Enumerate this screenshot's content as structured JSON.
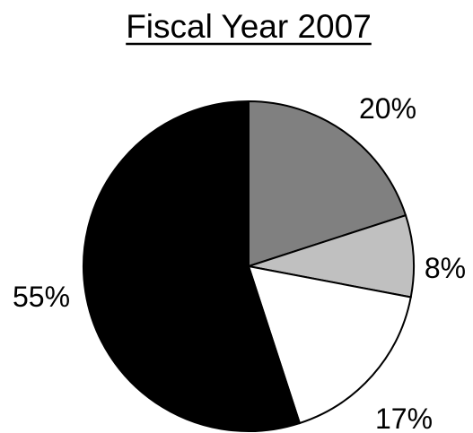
{
  "chart_data": {
    "type": "pie",
    "title": "Fiscal Year 2007",
    "start": "12-o'clock",
    "direction": "clockwise",
    "slices": [
      {
        "label": "20%",
        "value": 20,
        "color": "#808080"
      },
      {
        "label": "8%",
        "value": 8,
        "color": "#c0c0c0"
      },
      {
        "label": "17%",
        "value": 17,
        "color": "#ffffff"
      },
      {
        "label": "55%",
        "value": 55,
        "color": "#000000"
      }
    ]
  }
}
